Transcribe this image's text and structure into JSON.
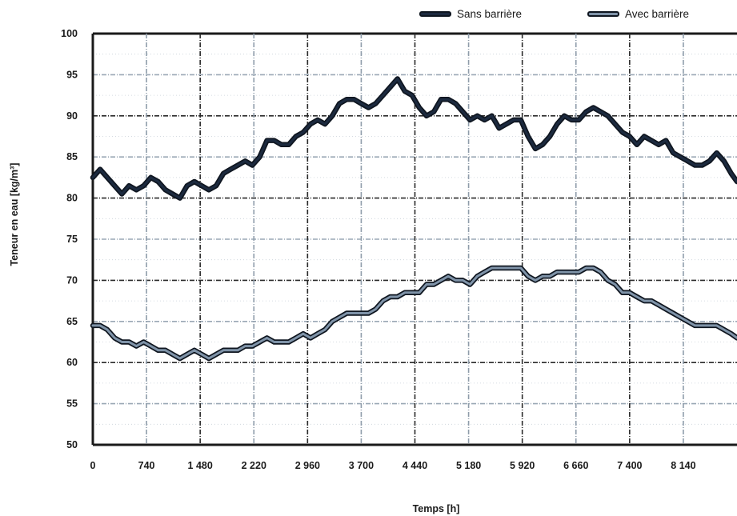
{
  "chart_data": {
    "type": "line",
    "title": "",
    "xlabel": "Temps [h]",
    "ylabel": "Teneur en eau [kg/m³]",
    "xlim": [
      0,
      8880
    ],
    "ylim": [
      50,
      100
    ],
    "x_ticks": [
      0,
      740,
      1480,
      2220,
      2960,
      3700,
      4440,
      5180,
      5920,
      6660,
      7400,
      8140
    ],
    "x_tick_labels": [
      "0",
      "740",
      "1 480",
      "2 220",
      "2 960",
      "3 700",
      "4 440",
      "5 180",
      "5 920",
      "6 660",
      "7 400",
      "8 140"
    ],
    "y_ticks": [
      50,
      55,
      60,
      65,
      70,
      75,
      80,
      85,
      90,
      95,
      100
    ],
    "y_tick_labels": [
      "50",
      "55",
      "60",
      "65",
      "70",
      "75",
      "80",
      "85",
      "90",
      "95",
      "100"
    ],
    "grid": true,
    "legend_position": "top-right",
    "series": [
      {
        "name": "Sans barrière",
        "color": "#1c2a3f",
        "x": [
          0,
          100,
          200,
          300,
          400,
          500,
          600,
          700,
          800,
          900,
          1000,
          1100,
          1200,
          1300,
          1400,
          1500,
          1600,
          1700,
          1800,
          1900,
          2000,
          2100,
          2200,
          2300,
          2400,
          2500,
          2600,
          2700,
          2800,
          2900,
          3000,
          3100,
          3200,
          3300,
          3400,
          3500,
          3600,
          3700,
          3800,
          3900,
          4000,
          4100,
          4200,
          4300,
          4400,
          4500,
          4600,
          4700,
          4800,
          4900,
          5000,
          5100,
          5200,
          5300,
          5400,
          5500,
          5600,
          5700,
          5800,
          5900,
          6000,
          6100,
          6200,
          6300,
          6400,
          6500,
          6600,
          6700,
          6800,
          6900,
          7000,
          7100,
          7200,
          7300,
          7400,
          7500,
          7600,
          7700,
          7800,
          7900,
          8000,
          8100,
          8200,
          8300,
          8400,
          8500,
          8600,
          8700,
          8800,
          8880
        ],
        "values": [
          82.5,
          83.5,
          82.5,
          81.5,
          80.5,
          81.5,
          81,
          81.5,
          82.5,
          82,
          81,
          80.5,
          80,
          81.5,
          82,
          81.5,
          81,
          81.5,
          83,
          83.5,
          84,
          84.5,
          84,
          85,
          87,
          87,
          86.5,
          86.5,
          87.5,
          88,
          89,
          89.5,
          89,
          90,
          91.5,
          92,
          92,
          91.5,
          91,
          91.5,
          92.5,
          93.5,
          94.5,
          93,
          92.5,
          91,
          90,
          90.5,
          92,
          92,
          91.5,
          90.5,
          89.5,
          90,
          89.5,
          90,
          88.5,
          89,
          89.5,
          89.5,
          87.5,
          86,
          86.5,
          87.5,
          89,
          90,
          89.5,
          89.5,
          90.5,
          91,
          90.5,
          90,
          89,
          88,
          87.5,
          86.5,
          87.5,
          87,
          86.5,
          87,
          85.5,
          85,
          84.5,
          84,
          84,
          84.5,
          85.5,
          84.5,
          83,
          82
        ]
      },
      {
        "name": "Avec barrière",
        "color": "#7f93a8",
        "x": [
          0,
          100,
          200,
          300,
          400,
          500,
          600,
          700,
          800,
          900,
          1000,
          1100,
          1200,
          1300,
          1400,
          1500,
          1600,
          1700,
          1800,
          1900,
          2000,
          2100,
          2200,
          2300,
          2400,
          2500,
          2600,
          2700,
          2800,
          2900,
          3000,
          3100,
          3200,
          3300,
          3400,
          3500,
          3600,
          3700,
          3800,
          3900,
          4000,
          4100,
          4200,
          4300,
          4400,
          4500,
          4600,
          4700,
          4800,
          4900,
          5000,
          5100,
          5200,
          5300,
          5400,
          5500,
          5600,
          5700,
          5800,
          5900,
          6000,
          6100,
          6200,
          6300,
          6400,
          6500,
          6600,
          6700,
          6800,
          6900,
          7000,
          7100,
          7200,
          7300,
          7400,
          7500,
          7600,
          7700,
          7800,
          7900,
          8000,
          8100,
          8200,
          8300,
          8400,
          8500,
          8600,
          8700,
          8800,
          8880
        ],
        "values": [
          64.5,
          64.5,
          64,
          63,
          62.5,
          62.5,
          62,
          62.5,
          62,
          61.5,
          61.5,
          61,
          60.5,
          61,
          61.5,
          61,
          60.5,
          61,
          61.5,
          61.5,
          61.5,
          62,
          62,
          62.5,
          63,
          62.5,
          62.5,
          62.5,
          63,
          63.5,
          63,
          63.5,
          64,
          65,
          65.5,
          66,
          66,
          66,
          66,
          66.5,
          67.5,
          68,
          68,
          68.5,
          68.5,
          68.5,
          69.5,
          69.5,
          70,
          70.5,
          70,
          70,
          69.5,
          70.5,
          71,
          71.5,
          71.5,
          71.5,
          71.5,
          71.5,
          70.5,
          70,
          70.5,
          70.5,
          71,
          71,
          71,
          71,
          71.5,
          71.5,
          71,
          70,
          69.5,
          68.5,
          68.5,
          68,
          67.5,
          67.5,
          67,
          66.5,
          66,
          65.5,
          65,
          64.5,
          64.5,
          64.5,
          64.5,
          64,
          63.5,
          63
        ]
      }
    ]
  }
}
